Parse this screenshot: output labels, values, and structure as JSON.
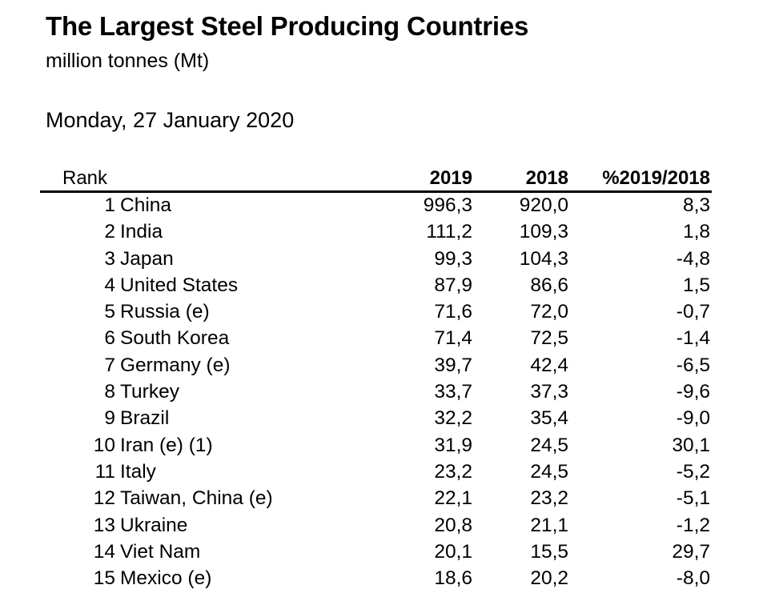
{
  "title": "The Largest Steel Producing Countries",
  "subtitle": "million tonnes (Mt)",
  "date": "Monday, 27 January 2020",
  "table": {
    "headers": {
      "rank": "Rank",
      "y2019": "2019",
      "y2018": "2018",
      "pct": "%2019/2018"
    },
    "rows": [
      {
        "rank": "1",
        "country": "China",
        "y2019": "996,3",
        "y2018": "920,0",
        "pct": "8,3"
      },
      {
        "rank": "2",
        "country": "India",
        "y2019": "111,2",
        "y2018": "109,3",
        "pct": "1,8"
      },
      {
        "rank": "3",
        "country": "Japan",
        "y2019": "99,3",
        "y2018": "104,3",
        "pct": "-4,8"
      },
      {
        "rank": "4",
        "country": "United States",
        "y2019": "87,9",
        "y2018": "86,6",
        "pct": "1,5"
      },
      {
        "rank": "5",
        "country": "Russia (e)",
        "y2019": "71,6",
        "y2018": "72,0",
        "pct": "-0,7"
      },
      {
        "rank": "6",
        "country": "South Korea",
        "y2019": "71,4",
        "y2018": "72,5",
        "pct": "-1,4"
      },
      {
        "rank": "7",
        "country": "Germany (e)",
        "y2019": "39,7",
        "y2018": "42,4",
        "pct": "-6,5"
      },
      {
        "rank": "8",
        "country": "Turkey",
        "y2019": "33,7",
        "y2018": "37,3",
        "pct": "-9,6"
      },
      {
        "rank": "9",
        "country": "Brazil",
        "y2019": "32,2",
        "y2018": "35,4",
        "pct": "-9,0"
      },
      {
        "rank": "10",
        "country": "Iran (e) (1)",
        "y2019": "31,9",
        "y2018": "24,5",
        "pct": "30,1"
      },
      {
        "rank": "11",
        "country": "Italy",
        "y2019": "23,2",
        "y2018": "24,5",
        "pct": "-5,2"
      },
      {
        "rank": "12",
        "country": "Taiwan, China (e)",
        "y2019": "22,1",
        "y2018": "23,2",
        "pct": "-5,1"
      },
      {
        "rank": "13",
        "country": "Ukraine",
        "y2019": "20,8",
        "y2018": "21,1",
        "pct": "-1,2"
      },
      {
        "rank": "14",
        "country": "Viet Nam",
        "y2019": "20,1",
        "y2018": "15,5",
        "pct": "29,7"
      },
      {
        "rank": "15",
        "country": "Mexico (e)",
        "y2019": "18,6",
        "y2018": "20,2",
        "pct": "-8,0"
      }
    ]
  }
}
